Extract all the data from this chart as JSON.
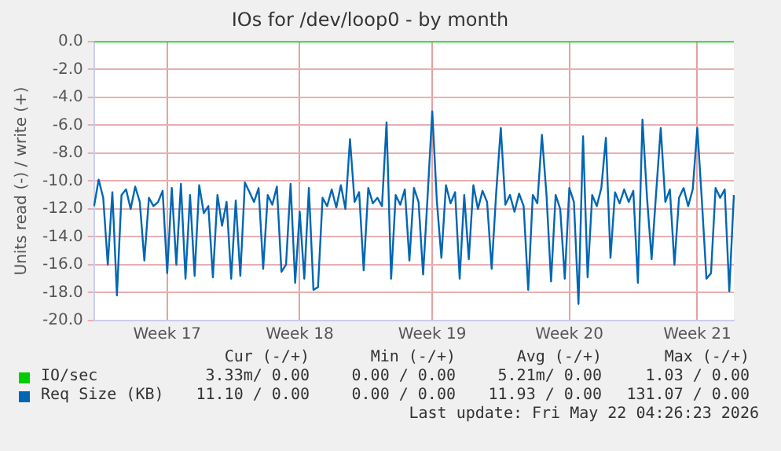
{
  "chart_data": {
    "type": "line",
    "title": "IOs for /dev/loop0 - by month",
    "ylabel": "Units read (-) / write (+)",
    "categories": [
      null,
      null,
      null,
      null,
      null,
      null,
      null,
      null,
      null,
      null,
      null,
      null,
      null,
      null,
      null,
      null,
      "Week 17",
      null,
      null,
      null,
      null,
      null,
      null,
      null,
      null,
      null,
      null,
      null,
      null,
      null,
      null,
      null,
      null,
      null,
      null,
      null,
      null,
      null,
      null,
      null,
      null,
      null,
      null,
      null,
      null,
      "Week 18",
      null,
      null,
      null,
      null,
      null,
      null,
      null,
      null,
      null,
      null,
      null,
      null,
      null,
      null,
      null,
      null,
      null,
      null,
      null,
      null,
      null,
      null,
      null,
      null,
      null,
      null,
      null,
      null,
      "Week 19",
      null,
      null,
      null,
      null,
      null,
      null,
      null,
      null,
      null,
      null,
      null,
      null,
      null,
      null,
      null,
      null,
      null,
      null,
      null,
      null,
      null,
      null,
      null,
      null,
      null,
      null,
      null,
      null,
      null,
      "Week 20",
      null,
      null,
      null,
      null,
      null,
      null,
      null,
      null,
      null,
      null,
      null,
      null,
      null,
      null,
      null,
      null,
      null,
      null,
      null,
      null,
      null,
      null,
      null,
      null,
      null,
      null,
      null,
      "Week 21",
      null,
      null,
      null,
      null,
      null,
      null,
      null,
      null
    ],
    "ylim": [
      -20,
      0
    ],
    "yticks": [
      {
        "value": 0,
        "label": "0.0"
      },
      {
        "value": -2,
        "label": "-2.0"
      },
      {
        "value": -4,
        "label": "-4.0"
      },
      {
        "value": -6,
        "label": "-6.0"
      },
      {
        "value": -8,
        "label": "-8.0"
      },
      {
        "value": -10,
        "label": "-10.0"
      },
      {
        "value": -12,
        "label": "-12.0"
      },
      {
        "value": -14,
        "label": "-14.0"
      },
      {
        "value": -16,
        "label": "-16.0"
      },
      {
        "value": -18,
        "label": "-18.0"
      },
      {
        "value": -20,
        "label": "-20.0"
      }
    ],
    "grid": true,
    "legend": "bottom",
    "marker": "none",
    "line_style": "solid",
    "series": [
      {
        "name": "IO/sec",
        "color": "#00cc00",
        "values": [
          0,
          0,
          0,
          0,
          0,
          0,
          0,
          0,
          0,
          0,
          0,
          0,
          0,
          0,
          0,
          0,
          0,
          0,
          0,
          0,
          0,
          0,
          0,
          0,
          0,
          0,
          0,
          0,
          0,
          0,
          0,
          0,
          0,
          0,
          0,
          0,
          0,
          0,
          0,
          0,
          0,
          0,
          0,
          0,
          0,
          0,
          0,
          0,
          0,
          0,
          0,
          0,
          0,
          0,
          0,
          0,
          0,
          0,
          0,
          0,
          0,
          0,
          0,
          0,
          0,
          0,
          0,
          0,
          0,
          0,
          0,
          0,
          0,
          0,
          0,
          0,
          0,
          0,
          0,
          0,
          0,
          0,
          0,
          0,
          0,
          0,
          0,
          0,
          0,
          0,
          0,
          0,
          0,
          0,
          0,
          0,
          0,
          0,
          0,
          0,
          0,
          0,
          0,
          0,
          0,
          0,
          0,
          0,
          0,
          0,
          0,
          0,
          0,
          0,
          0,
          0,
          0,
          0,
          0,
          0,
          0,
          0,
          0,
          0,
          0,
          0,
          0,
          0,
          0,
          0,
          0,
          0,
          0,
          0,
          0,
          0,
          0,
          0,
          0,
          0,
          0
        ]
      },
      {
        "name": "Req Size (KB)",
        "color": "#0066b3",
        "values": [
          -11.8,
          -9.9,
          -11.2,
          -16,
          -10.8,
          -18.2,
          -11,
          -10.6,
          -12,
          -10.4,
          -11.5,
          -15.7,
          -11.2,
          -11.8,
          -11.5,
          -10.7,
          -16.6,
          -10.5,
          -16,
          -10.2,
          -17,
          -11,
          -16.8,
          -10.3,
          -12.3,
          -11.8,
          -16.9,
          -11,
          -13.2,
          -11.5,
          -17,
          -11.4,
          -16.8,
          -10.1,
          -10.8,
          -11.5,
          -10.5,
          -16.3,
          -11,
          -11.7,
          -10.4,
          -16.5,
          -16,
          -10.2,
          -17.3,
          -12.2,
          -17,
          -10.5,
          -17.8,
          -17.6,
          -11.2,
          -11.8,
          -10.6,
          -11.9,
          -10.3,
          -12,
          -7,
          -11.5,
          -10.8,
          -16.4,
          -10.5,
          -11.6,
          -11.2,
          -11.8,
          -5.8,
          -17,
          -11,
          -11.7,
          -10.6,
          -15.7,
          -10.5,
          -11.5,
          -16.7,
          -11,
          -5,
          -11.4,
          -15.5,
          -10.3,
          -11.6,
          -10.8,
          -17,
          -11,
          -15.6,
          -10.3,
          -12,
          -10.7,
          -11.5,
          -16.3,
          -10.8,
          -6.2,
          -11.7,
          -11,
          -12.2,
          -10.9,
          -11.8,
          -17.8,
          -11,
          -11.6,
          -6.7,
          -11,
          -17.2,
          -11,
          -12,
          -17,
          -10.5,
          -11.5,
          -18.8,
          -6.8,
          -16.9,
          -11,
          -11.8,
          -10.5,
          -6.9,
          -15.5,
          -10.8,
          -11.6,
          -10.6,
          -11.5,
          -10.7,
          -17.3,
          -5.6,
          -11.2,
          -15.6,
          -10.8,
          -6.2,
          -11.5,
          -10.6,
          -16,
          -11.2,
          -10.5,
          -11.8,
          -10.6,
          -6.2,
          -11.4,
          -17,
          -16.6,
          -10.5,
          -11.2,
          -10.6,
          -17.9,
          -11
        ]
      }
    ],
    "annotations": [
      "Cur (-/+)",
      "Min (-/+)",
      "Avg (-/+)",
      "Max (-/+)",
      "3.33m/ 0.00",
      "0.00 / 0.00",
      "5.21m/ 0.00",
      "1.03 / 0.00",
      "11.10 / 0.00",
      "0.00 / 0.00",
      "11.93 / 0.00",
      "131.07 / 0.00",
      "Last update: Fri May 22 04:26:23 2026"
    ]
  }
}
